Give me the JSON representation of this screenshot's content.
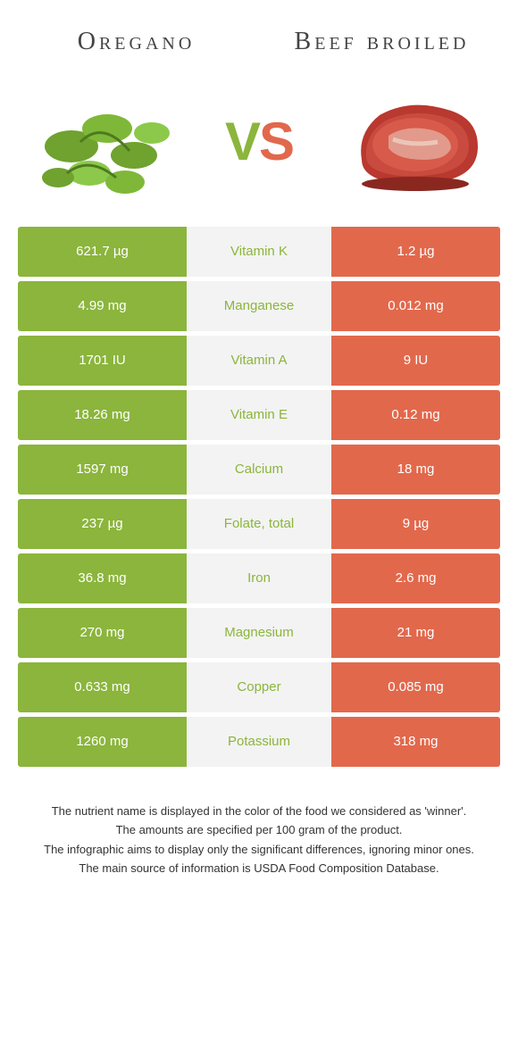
{
  "header": {
    "food_a": "Oregano",
    "food_b": "Beef broiled",
    "vs_v": "V",
    "vs_s": "S"
  },
  "colors": {
    "food_a": "#8bb53c",
    "food_b": "#e2684c",
    "mid_bg": "#f3f3f3"
  },
  "rows": [
    {
      "left": "621.7 µg",
      "label": "Vitamin K",
      "right": "1.2 µg",
      "winner": "left"
    },
    {
      "left": "4.99 mg",
      "label": "Manganese",
      "right": "0.012 mg",
      "winner": "left"
    },
    {
      "left": "1701 IU",
      "label": "Vitamin A",
      "right": "9 IU",
      "winner": "left"
    },
    {
      "left": "18.26 mg",
      "label": "Vitamin E",
      "right": "0.12 mg",
      "winner": "left"
    },
    {
      "left": "1597 mg",
      "label": "Calcium",
      "right": "18 mg",
      "winner": "left"
    },
    {
      "left": "237 µg",
      "label": "Folate, total",
      "right": "9 µg",
      "winner": "left"
    },
    {
      "left": "36.8 mg",
      "label": "Iron",
      "right": "2.6 mg",
      "winner": "left"
    },
    {
      "left": "270 mg",
      "label": "Magnesium",
      "right": "21 mg",
      "winner": "left"
    },
    {
      "left": "0.633 mg",
      "label": "Copper",
      "right": "0.085 mg",
      "winner": "left"
    },
    {
      "left": "1260 mg",
      "label": "Potassium",
      "right": "318 mg",
      "winner": "left"
    }
  ],
  "footer": {
    "line1": "The nutrient name is displayed in the color of the food we considered as 'winner'.",
    "line2": "The amounts are specified per 100 gram of the product.",
    "line3": "The infographic aims to display only the significant differences, ignoring minor ones.",
    "line4": "The main source of information is USDA Food Composition Database."
  }
}
